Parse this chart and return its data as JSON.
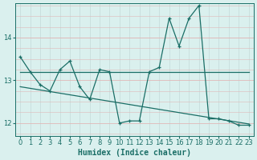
{
  "xlabel": "Humidex (Indice chaleur)",
  "xlim": [
    -0.5,
    23.5
  ],
  "ylim": [
    11.7,
    14.8
  ],
  "yticks": [
    12,
    13,
    14
  ],
  "xticks": [
    0,
    1,
    2,
    3,
    4,
    5,
    6,
    7,
    8,
    9,
    10,
    11,
    12,
    13,
    14,
    15,
    16,
    17,
    18,
    19,
    20,
    21,
    22,
    23
  ],
  "bg_color": "#daf0ee",
  "grid_color_v": "#c8dedd",
  "grid_color_h": "#e0b8b8",
  "line_color": "#1a6e66",
  "zigzag_x": [
    0,
    1,
    2,
    3,
    4,
    5,
    6,
    7,
    8,
    9,
    10,
    11,
    12,
    13,
    14,
    15,
    16,
    17,
    18,
    19,
    20,
    21,
    22,
    23
  ],
  "zigzag_y": [
    13.55,
    13.2,
    12.9,
    12.75,
    13.25,
    13.45,
    12.85,
    12.55,
    13.25,
    13.2,
    12.0,
    12.05,
    12.05,
    13.2,
    13.3,
    14.45,
    13.8,
    14.45,
    14.75,
    12.1,
    12.1,
    12.05,
    11.95,
    11.95
  ],
  "flat_x": [
    0,
    1,
    2,
    3,
    4,
    5,
    6,
    7,
    8,
    9,
    10,
    11,
    12,
    13,
    14,
    15,
    16,
    17,
    18,
    19,
    20,
    21,
    22,
    23
  ],
  "flat_y": [
    13.2,
    13.2,
    13.2,
    13.2,
    13.2,
    13.2,
    13.2,
    13.2,
    13.2,
    13.2,
    13.2,
    13.2,
    13.2,
    13.2,
    13.2,
    13.2,
    13.2,
    13.2,
    13.2,
    13.2,
    13.2,
    13.2,
    13.2,
    13.2
  ],
  "trend_x": [
    0,
    23
  ],
  "trend_y": [
    12.85,
    11.98
  ],
  "linewidth": 0.9,
  "marker_size": 3.5
}
